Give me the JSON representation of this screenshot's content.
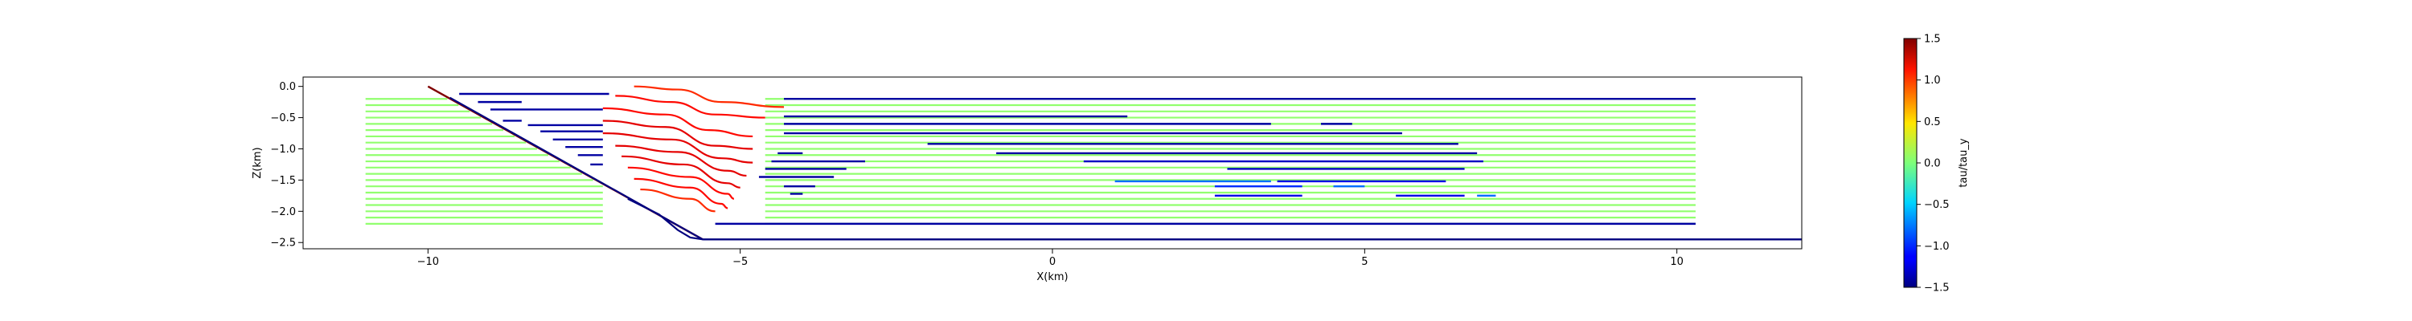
{
  "chart_data": [
    {
      "type": "line",
      "title": "",
      "xlabel": "X(km)",
      "ylabel": "Z(km)",
      "xlim": [
        -12.0,
        12.0
      ],
      "ylim": [
        -2.6,
        0.15
      ],
      "xticks": [
        -10,
        -5,
        0,
        5,
        10
      ],
      "yticks": [
        0.0,
        -0.5,
        -1.0,
        -1.5,
        -2.0,
        -2.5
      ],
      "grid": false,
      "legend": "none",
      "colormap": "jet",
      "geometry": {
        "fault_top": [
          [
            -10.0,
            0.0
          ],
          [
            -5.6,
            -2.45
          ]
        ],
        "bottom_boundary": [
          [
            -5.6,
            -2.45
          ],
          [
            12.0,
            -2.45
          ]
        ],
        "ramp_underside": [
          [
            -6.8,
            -1.8
          ],
          [
            -6.3,
            -2.05
          ],
          [
            -6.0,
            -2.3
          ],
          [
            -5.8,
            -2.42
          ],
          [
            -5.6,
            -2.45
          ]
        ]
      },
      "layers": {
        "z_values": [
          -0.2,
          -0.3,
          -0.4,
          -0.5,
          -0.6,
          -0.7,
          -0.8,
          -0.9,
          -1.0,
          -1.1,
          -1.2,
          -1.3,
          -1.4,
          -1.5,
          -1.6,
          -1.7,
          -1.8,
          -1.9,
          -2.0,
          -2.1,
          -2.2
        ],
        "left_green_start": -11.0,
        "right_green_end": 10.3
      },
      "segments": [
        {
          "x0": -9.5,
          "x1": -7.1,
          "z": -0.12,
          "value": -1.4
        },
        {
          "x0": -9.2,
          "x1": -8.5,
          "z": -0.25,
          "value": -1.4
        },
        {
          "x0": -9.0,
          "x1": -7.2,
          "z": -0.37,
          "value": -1.4
        },
        {
          "x0": -8.8,
          "x1": -8.5,
          "z": -0.55,
          "value": -1.4
        },
        {
          "x0": -8.4,
          "x1": -7.2,
          "z": -0.62,
          "value": -1.4
        },
        {
          "x0": -8.2,
          "x1": -7.2,
          "z": -0.72,
          "value": -1.4
        },
        {
          "x0": -8.0,
          "x1": -7.2,
          "z": -0.85,
          "value": -1.4
        },
        {
          "x0": -7.8,
          "x1": -7.2,
          "z": -0.97,
          "value": -1.4
        },
        {
          "x0": -7.6,
          "x1": -7.2,
          "z": -1.1,
          "value": -1.4
        },
        {
          "x0": -7.4,
          "x1": -7.2,
          "z": -1.25,
          "value": -1.4
        },
        {
          "x0": -4.3,
          "x1": 10.3,
          "z": -0.2,
          "value": -1.4
        },
        {
          "x0": -4.3,
          "x1": 1.2,
          "z": -0.48,
          "value": -1.4
        },
        {
          "x0": -4.3,
          "x1": 3.5,
          "z": -0.6,
          "value": -1.4
        },
        {
          "x0": 4.3,
          "x1": 4.8,
          "z": -0.6,
          "value": -1.4
        },
        {
          "x0": -4.3,
          "x1": 5.6,
          "z": -0.75,
          "value": -1.4
        },
        {
          "x0": -2.0,
          "x1": 6.5,
          "z": -0.92,
          "value": -1.4
        },
        {
          "x0": -4.4,
          "x1": -4.0,
          "z": -1.07,
          "value": -1.4
        },
        {
          "x0": -0.9,
          "x1": 6.8,
          "z": -1.07,
          "value": -1.4
        },
        {
          "x0": -4.5,
          "x1": -3.0,
          "z": -1.2,
          "value": -1.4
        },
        {
          "x0": 0.5,
          "x1": 6.9,
          "z": -1.2,
          "value": -1.3
        },
        {
          "x0": -4.6,
          "x1": -3.3,
          "z": -1.32,
          "value": -1.4
        },
        {
          "x0": 2.8,
          "x1": 6.6,
          "z": -1.32,
          "value": -1.3
        },
        {
          "x0": -4.7,
          "x1": -3.5,
          "z": -1.45,
          "value": -1.4
        },
        {
          "x0": 1.0,
          "x1": 3.5,
          "z": -1.52,
          "value": -0.8
        },
        {
          "x0": 3.6,
          "x1": 6.3,
          "z": -1.52,
          "value": -1.2
        },
        {
          "x0": -4.3,
          "x1": -3.8,
          "z": -1.6,
          "value": -1.4
        },
        {
          "x0": 2.6,
          "x1": 4.0,
          "z": -1.6,
          "value": -1.0
        },
        {
          "x0": 4.5,
          "x1": 5.0,
          "z": -1.6,
          "value": -0.8
        },
        {
          "x0": -4.2,
          "x1": -4.0,
          "z": -1.72,
          "value": -1.4
        },
        {
          "x0": 2.6,
          "x1": 4.0,
          "z": -1.75,
          "value": -1.2
        },
        {
          "x0": 5.5,
          "x1": 6.6,
          "z": -1.75,
          "value": -1.2
        },
        {
          "x0": 6.8,
          "x1": 7.1,
          "z": -1.75,
          "value": -0.8
        },
        {
          "x0": -5.4,
          "x1": 10.3,
          "z": -2.2,
          "value": -1.4
        }
      ],
      "curves": [
        {
          "points": [
            [
              -6.7,
              0.0
            ],
            [
              -6.0,
              -0.05
            ],
            [
              -5.3,
              -0.25
            ],
            [
              -4.3,
              -0.33
            ]
          ],
          "value": 1.0
        },
        {
          "points": [
            [
              -7.0,
              -0.15
            ],
            [
              -6.1,
              -0.25
            ],
            [
              -5.4,
              -0.45
            ],
            [
              -4.6,
              -0.5
            ]
          ],
          "value": 1.1
        },
        {
          "points": [
            [
              -7.2,
              -0.35
            ],
            [
              -6.2,
              -0.45
            ],
            [
              -5.5,
              -0.7
            ],
            [
              -4.8,
              -0.8
            ]
          ],
          "value": 1.1
        },
        {
          "points": [
            [
              -7.2,
              -0.55
            ],
            [
              -6.2,
              -0.65
            ],
            [
              -5.4,
              -0.95
            ],
            [
              -4.8,
              -1.0
            ]
          ],
          "value": 1.2
        },
        {
          "points": [
            [
              -7.2,
              -0.75
            ],
            [
              -6.1,
              -0.85
            ],
            [
              -5.3,
              -1.15
            ],
            [
              -4.8,
              -1.22
            ]
          ],
          "value": 1.2
        },
        {
          "points": [
            [
              -7.0,
              -0.95
            ],
            [
              -6.0,
              -1.05
            ],
            [
              -5.2,
              -1.35
            ],
            [
              -4.9,
              -1.43
            ]
          ],
          "value": 1.2
        },
        {
          "points": [
            [
              -6.9,
              -1.12
            ],
            [
              -5.9,
              -1.25
            ],
            [
              -5.2,
              -1.55
            ],
            [
              -5.0,
              -1.62
            ]
          ],
          "value": 1.2
        },
        {
          "points": [
            [
              -6.8,
              -1.3
            ],
            [
              -5.8,
              -1.45
            ],
            [
              -5.2,
              -1.72
            ],
            [
              -5.1,
              -1.8
            ]
          ],
          "value": 1.1
        },
        {
          "points": [
            [
              -6.7,
              -1.48
            ],
            [
              -5.8,
              -1.62
            ],
            [
              -5.3,
              -1.88
            ],
            [
              -5.2,
              -1.95
            ]
          ],
          "value": 1.1
        },
        {
          "points": [
            [
              -6.6,
              -1.65
            ],
            [
              -5.8,
              -1.8
            ],
            [
              -5.4,
              -2.0
            ]
          ],
          "value": 1.0
        }
      ],
      "colorbar": {
        "label": "tau/tau_y",
        "min": -1.5,
        "max": 1.5,
        "ticks": [
          1.5,
          1.0,
          0.5,
          0.0,
          -0.5,
          -1.0,
          -1.5
        ]
      }
    }
  ]
}
